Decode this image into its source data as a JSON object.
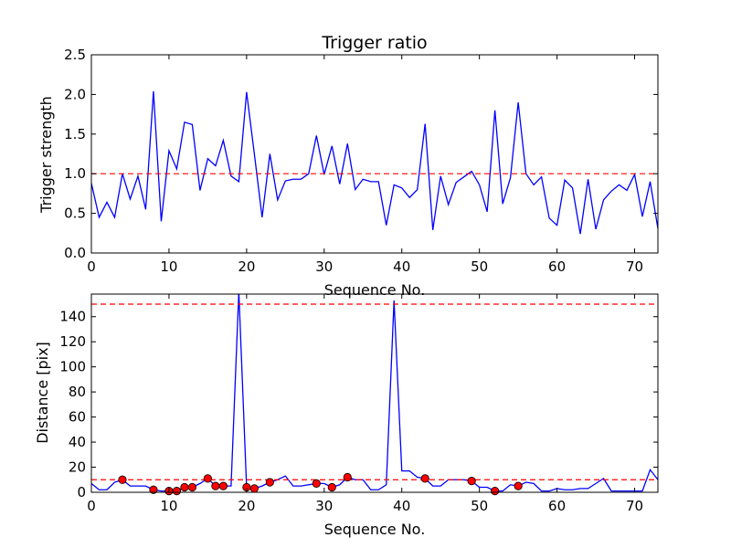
{
  "chart_data": [
    {
      "type": "line",
      "title": "Trigger ratio",
      "xlabel": "Sequence No.",
      "ylabel": "Trigger strength",
      "xlim": [
        0,
        73
      ],
      "ylim": [
        0,
        2.5
      ],
      "x_ticks": [
        "0",
        "10",
        "20",
        "30",
        "40",
        "50",
        "60",
        "70"
      ],
      "y_ticks": [
        "0.0",
        "0.5",
        "1.0",
        "1.5",
        "2.0",
        "2.5"
      ],
      "series_color": "#0000ff",
      "threshold_color": "#ff0000",
      "threshold": 1.0,
      "grid": false,
      "series": [
        {
          "values": [
            0.88,
            0.45,
            0.64,
            0.45,
            1.0,
            0.68,
            0.97,
            0.55,
            2.04,
            0.4,
            1.29,
            1.06,
            1.65,
            1.62,
            0.79,
            1.19,
            1.1,
            1.42,
            0.97,
            0.9,
            2.03,
            1.25,
            0.45,
            1.25,
            0.67,
            0.91,
            0.93,
            0.93,
            1.0,
            1.48,
            0.99,
            1.35,
            0.87,
            1.38,
            0.8,
            0.93,
            0.9,
            0.9,
            0.35,
            0.86,
            0.82,
            0.7,
            0.8,
            1.63,
            0.29,
            0.97,
            0.61,
            0.89,
            0.96,
            1.03,
            0.86,
            0.52,
            1.8,
            0.62,
            0.95,
            1.9,
            1.0,
            0.86,
            0.96,
            0.44,
            0.35,
            0.92,
            0.82,
            0.24,
            0.93,
            0.3,
            0.67,
            0.78,
            0.86,
            0.79,
            0.99,
            0.46,
            0.9,
            0.31
          ]
        }
      ]
    },
    {
      "type": "line",
      "title": "",
      "xlabel": "Sequence No.",
      "ylabel": "Distance [pix]",
      "xlim": [
        0,
        73
      ],
      "ylim": [
        0,
        158
      ],
      "x_ticks": [
        "0",
        "10",
        "20",
        "30",
        "40",
        "50",
        "60",
        "70"
      ],
      "y_ticks": [
        "0",
        "20",
        "40",
        "60",
        "80",
        "100",
        "120",
        "140"
      ],
      "series_color": "#0000ff",
      "threshold_color": "#ff0000",
      "marker_color": "#ff0000",
      "thresholds": [
        150,
        10
      ],
      "grid": false,
      "series": [
        {
          "values": [
            7,
            2,
            2,
            8,
            10,
            5,
            5,
            5,
            2,
            1,
            1,
            1,
            4,
            4,
            7,
            11,
            5,
            5,
            5,
            160,
            4,
            3,
            5,
            8,
            10,
            13,
            5,
            5,
            6,
            7,
            7,
            4,
            6,
            12,
            10,
            10,
            2,
            2,
            6,
            153,
            17,
            17,
            12,
            11,
            5,
            5,
            10,
            10,
            10,
            9,
            4,
            4,
            1,
            1,
            6,
            5,
            8,
            7,
            1,
            1,
            3,
            2,
            2,
            3,
            3,
            7,
            11,
            1,
            1,
            1,
            1,
            1,
            18,
            10
          ]
        }
      ],
      "markers": {
        "x": [
          4,
          8,
          10,
          11,
          12,
          13,
          15,
          16,
          17,
          20,
          21,
          23,
          29,
          31,
          33,
          43,
          49,
          52,
          55
        ],
        "y": [
          10,
          2,
          1,
          1,
          4,
          4,
          11,
          5,
          5,
          4,
          3,
          8,
          7,
          4,
          12,
          11,
          9,
          1,
          5
        ]
      }
    }
  ]
}
